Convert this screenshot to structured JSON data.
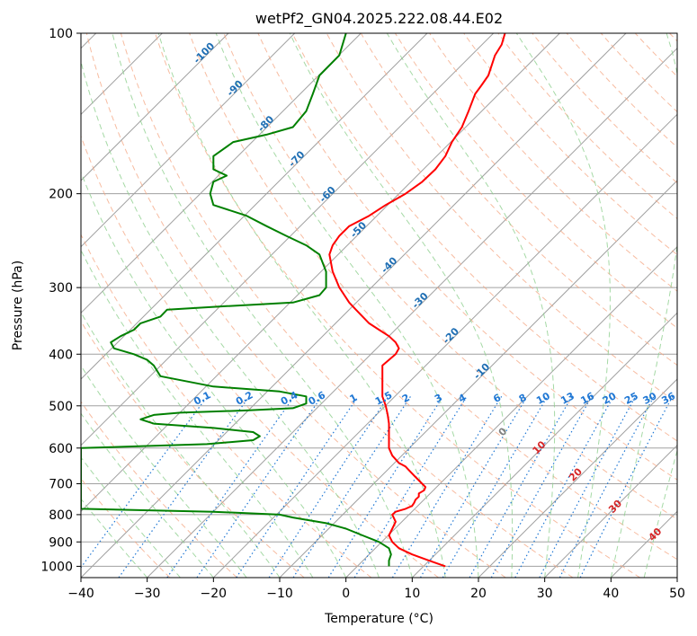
{
  "chart_data": {
    "type": "line",
    "title": "wetPf2_GN04.2025.222.08.44.E02",
    "xlabel": "Temperature (°C)",
    "ylabel": "Pressure (hPa)",
    "xlim": [
      -40,
      50
    ],
    "ylim": [
      1050,
      100
    ],
    "y_scale": "log",
    "grid": true,
    "x_ticks": [
      "−40",
      "−30",
      "−20",
      "−10",
      "0",
      "10",
      "20",
      "30",
      "40",
      "50"
    ],
    "x_tick_values": [
      -40,
      -30,
      -20,
      -10,
      0,
      10,
      20,
      30,
      40,
      50
    ],
    "y_ticks": [
      "100",
      "200",
      "300",
      "400",
      "500",
      "600",
      "700",
      "800",
      "900",
      "1000"
    ],
    "y_tick_values": [
      100,
      200,
      300,
      400,
      500,
      600,
      700,
      800,
      900,
      1000
    ],
    "colors": {
      "temperature": "#ff0000",
      "dewpoint": "#008000",
      "isotherm": "#a0a0a0",
      "dry_adiabat": "#f4a582",
      "moist_adiabat": "#8fcf8f",
      "mixing_ratio": "#1f77d4",
      "isotherm_label": "#1f6fb4",
      "moist_label": "#d62728",
      "zero_label": "#808080"
    },
    "series": [
      {
        "name": "temperature",
        "values": [
          [
            15.0,
            1000
          ],
          [
            12.5,
            975
          ],
          [
            10.0,
            950
          ],
          [
            8.0,
            925
          ],
          [
            7.0,
            900
          ],
          [
            6.5,
            875
          ],
          [
            7.0,
            850
          ],
          [
            7.5,
            825
          ],
          [
            7.0,
            800
          ],
          [
            7.5,
            790
          ],
          [
            9.0,
            780
          ],
          [
            10.0,
            770
          ],
          [
            10.3,
            760
          ],
          [
            10.5,
            750
          ],
          [
            11.0,
            740
          ],
          [
            11.0,
            730
          ],
          [
            11.8,
            720
          ],
          [
            12.0,
            710
          ],
          [
            11.5,
            700
          ],
          [
            10.5,
            680
          ],
          [
            10.0,
            670
          ],
          [
            9.5,
            660
          ],
          [
            9.0,
            650
          ],
          [
            8.0,
            640
          ],
          [
            7.0,
            620
          ],
          [
            6.5,
            600
          ],
          [
            6.5,
            580
          ],
          [
            6.5,
            560
          ],
          [
            6.5,
            540
          ],
          [
            6.3,
            520
          ],
          [
            6.0,
            500
          ],
          [
            5.5,
            480
          ],
          [
            5.5,
            460
          ],
          [
            5.5,
            440
          ],
          [
            5.5,
            420
          ],
          [
            7.5,
            400
          ],
          [
            8.0,
            390
          ],
          [
            7.5,
            380
          ],
          [
            6.5,
            370
          ],
          [
            5.0,
            360
          ],
          [
            3.5,
            350
          ],
          [
            1.5,
            330
          ],
          [
            0.5,
            320
          ],
          [
            -1.0,
            300
          ],
          [
            -2.0,
            280
          ],
          [
            -2.5,
            260
          ],
          [
            -2.0,
            250
          ],
          [
            -1.0,
            240
          ],
          [
            0.5,
            230
          ],
          [
            3.5,
            220
          ],
          [
            6.0,
            210
          ],
          [
            9.0,
            200
          ],
          [
            11.5,
            190
          ],
          [
            13.5,
            180
          ],
          [
            15.0,
            170
          ],
          [
            16.0,
            160
          ],
          [
            17.5,
            150
          ],
          [
            18.5,
            140
          ],
          [
            19.5,
            130
          ],
          [
            20.5,
            125
          ],
          [
            21.5,
            120
          ],
          [
            22.5,
            110
          ],
          [
            23.5,
            105
          ],
          [
            24.0,
            100
          ]
        ]
      },
      {
        "name": "dewpoint",
        "values": [
          [
            6.5,
            1000
          ],
          [
            6.5,
            975
          ],
          [
            6.8,
            950
          ],
          [
            6.5,
            925
          ],
          [
            5.0,
            900
          ],
          [
            2.5,
            875
          ],
          [
            0.0,
            850
          ],
          [
            -3.0,
            830
          ],
          [
            -8.0,
            810
          ],
          [
            -10.0,
            800
          ],
          [
            -20.0,
            790
          ],
          [
            -40.0,
            780
          ],
          [
            -40.0,
            600
          ],
          [
            -21.0,
            590
          ],
          [
            -14.0,
            580
          ],
          [
            -13.0,
            570
          ],
          [
            -14.0,
            560
          ],
          [
            -20.0,
            550
          ],
          [
            -29.0,
            540
          ],
          [
            -31.0,
            530
          ],
          [
            -29.0,
            520
          ],
          [
            -25.0,
            515
          ],
          [
            -15.0,
            510
          ],
          [
            -8.0,
            505
          ],
          [
            -6.0,
            495
          ],
          [
            -6.0,
            480
          ],
          [
            -10.0,
            470
          ],
          [
            -20.0,
            460
          ],
          [
            -28.0,
            440
          ],
          [
            -29.0,
            420
          ],
          [
            -30.0,
            410
          ],
          [
            -32.0,
            400
          ],
          [
            -35.0,
            390
          ],
          [
            -35.5,
            380
          ],
          [
            -34.0,
            370
          ],
          [
            -32.0,
            360
          ],
          [
            -31.0,
            350
          ],
          [
            -28.0,
            340
          ],
          [
            -27.0,
            330
          ],
          [
            -18.0,
            325
          ],
          [
            -8.0,
            320
          ],
          [
            -4.0,
            310
          ],
          [
            -3.0,
            300
          ],
          [
            -3.0,
            290
          ],
          [
            -3.0,
            280
          ],
          [
            -4.0,
            260
          ],
          [
            -6.0,
            250
          ],
          [
            -9.0,
            240
          ],
          [
            -12.0,
            230
          ],
          [
            -15.0,
            220
          ],
          [
            -20.0,
            210
          ],
          [
            -20.5,
            200
          ],
          [
            -20.0,
            190
          ],
          [
            -18.0,
            185
          ],
          [
            -20.0,
            180
          ],
          [
            -20.0,
            170
          ],
          [
            -17.0,
            160
          ],
          [
            -12.0,
            155
          ],
          [
            -8.0,
            150
          ],
          [
            -6.0,
            140
          ],
          [
            -5.0,
            130
          ],
          [
            -4.0,
            120
          ],
          [
            -1.0,
            110
          ],
          [
            0.0,
            100
          ]
        ]
      }
    ],
    "isotherm_labels": [
      "-100",
      "-90",
      "-80",
      "-70",
      "-60",
      "-50",
      "-40",
      "-30",
      "-20",
      "-10"
    ],
    "mixing_ratio_labels": [
      "0.1",
      "0.2",
      "0.4",
      "0.6",
      "1",
      "1.5",
      "2",
      "3",
      "4",
      "6",
      "8",
      "10",
      "13",
      "16",
      "20",
      "25",
      "30",
      "36"
    ],
    "moist_adiabat_labels": [
      "0",
      "10",
      "20",
      "30",
      "40"
    ]
  }
}
